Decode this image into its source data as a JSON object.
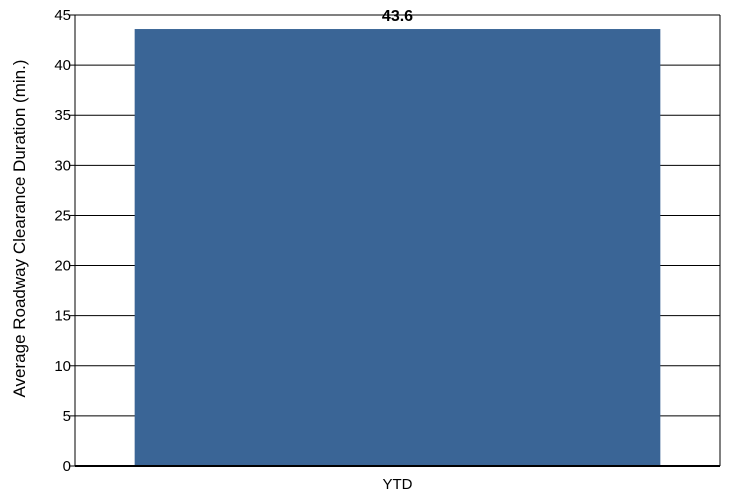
{
  "chart_data": {
    "type": "bar",
    "categories": [
      "YTD"
    ],
    "values": [
      43.6
    ],
    "data_labels": [
      "43.6"
    ],
    "title": "",
    "xlabel": "",
    "ylabel": "Average Roadway Clearance Duration (min.)",
    "ylim": [
      0,
      45
    ],
    "y_ticks": [
      0,
      5,
      10,
      15,
      20,
      25,
      30,
      35,
      40,
      45
    ],
    "grid": true,
    "legend": "none",
    "colors": {
      "bar": "#3A6596",
      "grid": "#000000",
      "axis": "#000000",
      "background": "#ffffff"
    }
  }
}
